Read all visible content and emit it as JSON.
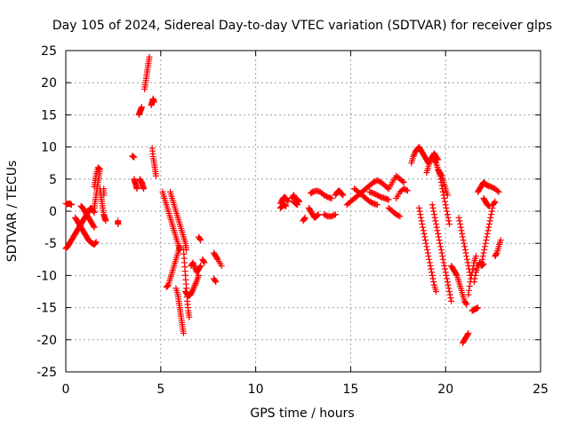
{
  "chart_data": {
    "type": "scatter",
    "title": "Day 105 of 2024, Sidereal Day-to-day VTEC variation (SDTVAR) for receiver glps",
    "xlabel": "GPS time / hours",
    "ylabel": "SDTVAR / TECUs",
    "xlim": [
      0,
      25
    ],
    "ylim": [
      -25,
      25
    ],
    "xticks": [
      0,
      5,
      10,
      15,
      20,
      25
    ],
    "yticks": [
      -25,
      -20,
      -15,
      -10,
      -5,
      0,
      5,
      10,
      15,
      20,
      25
    ],
    "grid": true,
    "marker": "+",
    "color": "#ff0000",
    "segments": [
      [
        [
          0.0,
          1.2
        ],
        [
          0.1,
          1.1
        ],
        [
          0.2,
          1.2
        ],
        [
          0.3,
          1.0
        ]
      ],
      [
        [
          0.0,
          -5.8
        ],
        [
          0.1,
          -5.5
        ],
        [
          0.2,
          -5.0
        ],
        [
          0.3,
          -4.5
        ],
        [
          0.4,
          -4.0
        ],
        [
          0.5,
          -3.5
        ],
        [
          0.6,
          -3.0
        ],
        [
          0.7,
          -2.5
        ],
        [
          0.8,
          -2.0
        ],
        [
          0.9,
          -1.5
        ],
        [
          1.0,
          -1.0
        ],
        [
          1.1,
          -0.5
        ],
        [
          1.2,
          0.0
        ],
        [
          1.3,
          0.5
        ],
        [
          1.4,
          0.3
        ],
        [
          1.5,
          -0.2
        ]
      ],
      [
        [
          0.5,
          -1.0
        ],
        [
          0.6,
          -1.5
        ],
        [
          0.7,
          -2.0
        ],
        [
          0.8,
          -2.5
        ],
        [
          0.9,
          -3.0
        ],
        [
          1.0,
          -3.5
        ],
        [
          1.1,
          -4.0
        ],
        [
          1.2,
          -4.5
        ],
        [
          1.3,
          -4.8
        ],
        [
          1.4,
          -5.0
        ],
        [
          1.5,
          -5.2
        ],
        [
          1.6,
          -4.8
        ]
      ],
      [
        [
          0.8,
          0.8
        ],
        [
          0.9,
          0.5
        ],
        [
          1.0,
          0.0
        ],
        [
          1.1,
          -0.5
        ],
        [
          1.2,
          -1.0
        ],
        [
          1.3,
          -1.5
        ],
        [
          1.4,
          -2.0
        ],
        [
          1.5,
          -2.5
        ]
      ],
      [
        [
          1.5,
          0.5
        ],
        [
          1.55,
          1.5
        ],
        [
          1.6,
          2.5
        ],
        [
          1.65,
          3.5
        ],
        [
          1.7,
          4.5
        ],
        [
          1.75,
          5.5
        ],
        [
          1.8,
          6.5
        ],
        [
          1.7,
          6.8
        ],
        [
          1.6,
          5.8
        ],
        [
          1.55,
          4.8
        ],
        [
          1.5,
          3.8
        ]
      ],
      [
        [
          1.8,
          3.5
        ],
        [
          1.85,
          2.5
        ],
        [
          1.9,
          1.5
        ],
        [
          1.95,
          0.5
        ],
        [
          2.0,
          -0.5
        ],
        [
          2.05,
          -1.0
        ],
        [
          2.1,
          -1.5
        ]
      ],
      [
        [
          2.0,
          3.5
        ],
        [
          2.0,
          2.5
        ]
      ],
      [
        [
          2.75,
          -1.5
        ],
        [
          2.75,
          -2.0
        ]
      ],
      [
        [
          3.5,
          8.6
        ],
        [
          3.6,
          8.4
        ]
      ],
      [
        [
          3.6,
          5.0
        ],
        [
          3.65,
          4.5
        ],
        [
          3.7,
          4.0
        ],
        [
          3.75,
          3.5
        ]
      ],
      [
        [
          3.85,
          15.0
        ],
        [
          3.9,
          15.4
        ],
        [
          3.95,
          15.8
        ],
        [
          4.0,
          16.2
        ]
      ],
      [
        [
          3.9,
          5.0
        ],
        [
          4.0,
          4.5
        ],
        [
          4.05,
          4.0
        ],
        [
          4.1,
          3.5
        ]
      ],
      [
        [
          4.15,
          19.0
        ],
        [
          4.2,
          20.0
        ],
        [
          4.25,
          21.0
        ],
        [
          4.3,
          22.0
        ],
        [
          4.35,
          23.0
        ],
        [
          4.4,
          24.0
        ]
      ],
      [
        [
          4.5,
          16.5
        ],
        [
          4.55,
          17.0
        ],
        [
          4.6,
          17.5
        ],
        [
          4.65,
          17.0
        ]
      ],
      [
        [
          4.55,
          9.8
        ],
        [
          4.6,
          8.5
        ],
        [
          4.65,
          7.5
        ],
        [
          4.7,
          6.5
        ],
        [
          4.75,
          5.5
        ]
      ],
      [
        [
          5.1,
          3.0
        ],
        [
          5.2,
          2.0
        ],
        [
          5.3,
          1.0
        ],
        [
          5.4,
          0.0
        ],
        [
          5.5,
          -1.0
        ],
        [
          5.6,
          -2.0
        ],
        [
          5.7,
          -3.0
        ],
        [
          5.8,
          -4.0
        ],
        [
          5.9,
          -5.0
        ],
        [
          6.0,
          -6.0
        ]
      ],
      [
        [
          5.5,
          3.0
        ],
        [
          5.6,
          2.0
        ],
        [
          5.7,
          1.0
        ],
        [
          5.8,
          0.0
        ],
        [
          5.9,
          -1.0
        ],
        [
          6.0,
          -2.0
        ],
        [
          6.1,
          -3.0
        ],
        [
          6.2,
          -4.0
        ],
        [
          6.3,
          -5.0
        ],
        [
          6.35,
          -6.0
        ]
      ],
      [
        [
          5.3,
          -11.8
        ],
        [
          5.4,
          -11.5
        ],
        [
          5.5,
          -10.5
        ],
        [
          5.6,
          -9.5
        ],
        [
          5.7,
          -8.5
        ],
        [
          5.8,
          -7.5
        ],
        [
          5.9,
          -6.5
        ],
        [
          6.0,
          -5.5
        ]
      ],
      [
        [
          5.8,
          -12.0
        ],
        [
          5.9,
          -13.0
        ],
        [
          5.95,
          -14.0
        ],
        [
          6.0,
          -15.0
        ],
        [
          6.05,
          -16.0
        ],
        [
          6.1,
          -17.0
        ],
        [
          6.15,
          -18.0
        ],
        [
          6.2,
          -19.0
        ]
      ],
      [
        [
          6.2,
          -6.0
        ],
        [
          6.25,
          -8.0
        ],
        [
          6.3,
          -10.0
        ],
        [
          6.35,
          -12.0
        ],
        [
          6.4,
          -14.0
        ],
        [
          6.45,
          -15.5
        ],
        [
          6.5,
          -16.5
        ]
      ],
      [
        [
          6.3,
          -12.5
        ],
        [
          6.4,
          -13.0
        ],
        [
          6.5,
          -13.2
        ],
        [
          6.6,
          -12.8
        ],
        [
          6.7,
          -12.2
        ],
        [
          6.8,
          -11.5
        ],
        [
          6.9,
          -10.8
        ],
        [
          7.0,
          -10.0
        ]
      ],
      [
        [
          6.6,
          -8.5
        ],
        [
          6.7,
          -8.0
        ],
        [
          6.8,
          -8.8
        ],
        [
          6.9,
          -9.5
        ],
        [
          7.0,
          -9.0
        ],
        [
          7.1,
          -8.5
        ]
      ],
      [
        [
          7.0,
          -4.0
        ],
        [
          7.1,
          -4.5
        ]
      ],
      [
        [
          7.2,
          -7.5
        ],
        [
          7.3,
          -8.0
        ]
      ],
      [
        [
          7.8,
          -6.5
        ],
        [
          7.9,
          -7.0
        ],
        [
          8.0,
          -7.5
        ],
        [
          8.2,
          -8.5
        ]
      ],
      [
        [
          7.8,
          -10.5
        ],
        [
          7.9,
          -11.0
        ]
      ],
      [
        [
          11.3,
          1.2
        ],
        [
          11.4,
          1.8
        ],
        [
          11.5,
          2.2
        ],
        [
          11.6,
          2.0
        ],
        [
          11.7,
          1.5
        ]
      ],
      [
        [
          11.3,
          0.5
        ],
        [
          11.4,
          0.8
        ],
        [
          11.5,
          1.0
        ],
        [
          11.6,
          0.8
        ]
      ],
      [
        [
          11.9,
          2.0
        ],
        [
          12.0,
          2.5
        ],
        [
          12.1,
          2.0
        ],
        [
          12.2,
          1.8
        ],
        [
          12.3,
          1.5
        ]
      ],
      [
        [
          12.0,
          1.5
        ],
        [
          12.1,
          1.2
        ],
        [
          12.2,
          1.0
        ]
      ],
      [
        [
          12.5,
          -1.5
        ],
        [
          12.6,
          -1.0
        ]
      ],
      [
        [
          12.8,
          0.5
        ],
        [
          12.9,
          0.0
        ],
        [
          13.0,
          -0.5
        ],
        [
          13.1,
          -1.0
        ],
        [
          13.2,
          -0.8
        ],
        [
          13.3,
          -0.5
        ]
      ],
      [
        [
          12.9,
          2.8
        ],
        [
          13.0,
          3.0
        ],
        [
          13.2,
          3.2
        ],
        [
          13.4,
          3.0
        ],
        [
          13.6,
          2.5
        ],
        [
          13.8,
          2.2
        ],
        [
          14.0,
          2.0
        ]
      ],
      [
        [
          13.6,
          -0.5
        ],
        [
          13.8,
          -0.8
        ],
        [
          14.0,
          -0.8
        ],
        [
          14.2,
          -0.5
        ]
      ],
      [
        [
          14.2,
          2.5
        ],
        [
          14.3,
          3.0
        ],
        [
          14.4,
          3.2
        ],
        [
          14.5,
          2.8
        ],
        [
          14.6,
          2.5
        ]
      ],
      [
        [
          14.8,
          1.0
        ],
        [
          15.0,
          1.5
        ],
        [
          15.2,
          2.0
        ],
        [
          15.4,
          2.5
        ],
        [
          15.6,
          3.0
        ],
        [
          15.8,
          3.5
        ],
        [
          16.0,
          4.0
        ],
        [
          16.2,
          4.5
        ],
        [
          16.4,
          4.8
        ],
        [
          16.6,
          4.5
        ],
        [
          16.8,
          4.0
        ],
        [
          17.0,
          3.5
        ]
      ],
      [
        [
          15.2,
          3.5
        ],
        [
          15.4,
          3.0
        ],
        [
          15.6,
          2.5
        ],
        [
          15.8,
          2.0
        ],
        [
          16.0,
          1.5
        ],
        [
          16.2,
          1.2
        ],
        [
          16.4,
          1.0
        ]
      ],
      [
        [
          16.0,
          3.0
        ],
        [
          16.2,
          2.8
        ],
        [
          16.4,
          2.5
        ],
        [
          16.6,
          2.2
        ],
        [
          16.8,
          2.0
        ],
        [
          17.0,
          1.8
        ]
      ],
      [
        [
          17.0,
          0.5
        ],
        [
          17.2,
          0.0
        ],
        [
          17.4,
          -0.5
        ],
        [
          17.6,
          -0.8
        ]
      ],
      [
        [
          17.0,
          3.5
        ],
        [
          17.2,
          4.5
        ],
        [
          17.4,
          5.5
        ],
        [
          17.6,
          5.0
        ],
        [
          17.8,
          4.5
        ]
      ],
      [
        [
          17.4,
          2.0
        ],
        [
          17.6,
          3.0
        ],
        [
          17.8,
          3.5
        ],
        [
          18.0,
          3.2
        ]
      ],
      [
        [
          18.2,
          7.5
        ],
        [
          18.3,
          8.5
        ],
        [
          18.4,
          9.2
        ],
        [
          18.5,
          9.6
        ],
        [
          18.6,
          10.0
        ],
        [
          18.7,
          9.5
        ],
        [
          18.8,
          9.0
        ],
        [
          18.9,
          8.5
        ],
        [
          19.0,
          8.0
        ],
        [
          19.1,
          7.5
        ]
      ],
      [
        [
          18.6,
          0.5
        ],
        [
          18.7,
          -1.0
        ],
        [
          18.8,
          -2.5
        ],
        [
          18.9,
          -4.0
        ],
        [
          19.0,
          -5.5
        ],
        [
          19.1,
          -7.0
        ],
        [
          19.2,
          -8.5
        ],
        [
          19.3,
          -10.0
        ],
        [
          19.4,
          -11.5
        ],
        [
          19.5,
          -12.5
        ]
      ],
      [
        [
          19.0,
          6.0
        ],
        [
          19.1,
          7.0
        ],
        [
          19.2,
          8.0
        ],
        [
          19.3,
          8.5
        ],
        [
          19.4,
          9.0
        ],
        [
          19.5,
          8.5
        ],
        [
          19.6,
          8.0
        ]
      ],
      [
        [
          19.3,
          1.0
        ],
        [
          19.4,
          -0.5
        ],
        [
          19.5,
          -2.0
        ],
        [
          19.6,
          -3.5
        ],
        [
          19.7,
          -5.0
        ],
        [
          19.8,
          -6.5
        ],
        [
          19.9,
          -8.0
        ],
        [
          20.0,
          -9.5
        ],
        [
          20.1,
          -11.0
        ],
        [
          20.2,
          -12.5
        ],
        [
          20.3,
          -14.0
        ]
      ],
      [
        [
          19.6,
          6.5
        ],
        [
          19.7,
          6.0
        ],
        [
          19.8,
          5.5
        ],
        [
          19.9,
          4.5
        ],
        [
          20.0,
          3.5
        ],
        [
          20.1,
          2.5
        ]
      ],
      [
        [
          19.4,
          8.0
        ],
        [
          19.5,
          7.5
        ],
        [
          19.6,
          6.5
        ],
        [
          19.7,
          5.5
        ],
        [
          19.8,
          4.0
        ],
        [
          19.9,
          2.5
        ],
        [
          20.0,
          1.0
        ],
        [
          20.1,
          -0.5
        ],
        [
          20.2,
          -2.0
        ]
      ],
      [
        [
          20.7,
          -1.0
        ],
        [
          20.8,
          -2.5
        ],
        [
          20.9,
          -4.0
        ],
        [
          21.0,
          -5.5
        ],
        [
          21.1,
          -7.0
        ],
        [
          21.2,
          -8.5
        ],
        [
          21.3,
          -10.0
        ]
      ],
      [
        [
          20.3,
          -8.5
        ],
        [
          20.4,
          -9.0
        ],
        [
          20.5,
          -9.5
        ],
        [
          20.6,
          -10.0
        ],
        [
          20.7,
          -11.0
        ],
        [
          20.8,
          -12.0
        ],
        [
          20.9,
          -13.0
        ],
        [
          21.0,
          -14.0
        ],
        [
          21.1,
          -14.5
        ]
      ],
      [
        [
          21.2,
          -13.0
        ],
        [
          21.3,
          -11.0
        ],
        [
          21.4,
          -9.5
        ],
        [
          21.5,
          -8.0
        ],
        [
          21.6,
          -7.0
        ]
      ],
      [
        [
          21.4,
          -15.5
        ],
        [
          21.5,
          -15.3
        ],
        [
          21.6,
          -15.2
        ],
        [
          21.7,
          -15.0
        ]
      ],
      [
        [
          20.9,
          -20.5
        ],
        [
          21.0,
          -20.0
        ],
        [
          21.1,
          -19.5
        ],
        [
          21.2,
          -19.0
        ]
      ],
      [
        [
          21.5,
          -11.0
        ],
        [
          21.6,
          -9.5
        ],
        [
          21.7,
          -8.5
        ],
        [
          21.8,
          -8.0
        ],
        [
          21.9,
          -8.5
        ],
        [
          22.0,
          -8.2
        ]
      ],
      [
        [
          21.7,
          3.0
        ],
        [
          21.8,
          3.5
        ],
        [
          21.9,
          4.0
        ],
        [
          22.0,
          4.5
        ],
        [
          22.1,
          4.2
        ],
        [
          22.2,
          4.0
        ],
        [
          22.4,
          3.8
        ],
        [
          22.6,
          3.5
        ],
        [
          22.8,
          3.0
        ]
      ],
      [
        [
          21.9,
          -8.0
        ],
        [
          22.0,
          -6.5
        ],
        [
          22.1,
          -5.0
        ],
        [
          22.2,
          -3.5
        ],
        [
          22.3,
          -2.0
        ],
        [
          22.4,
          -0.5
        ],
        [
          22.5,
          1.0
        ],
        [
          22.6,
          1.5
        ]
      ],
      [
        [
          22.0,
          2.0
        ],
        [
          22.1,
          1.5
        ],
        [
          22.2,
          1.0
        ],
        [
          22.3,
          0.8
        ]
      ],
      [
        [
          22.6,
          -7.0
        ],
        [
          22.7,
          -6.5
        ],
        [
          22.8,
          -5.5
        ],
        [
          22.9,
          -4.5
        ]
      ]
    ]
  }
}
